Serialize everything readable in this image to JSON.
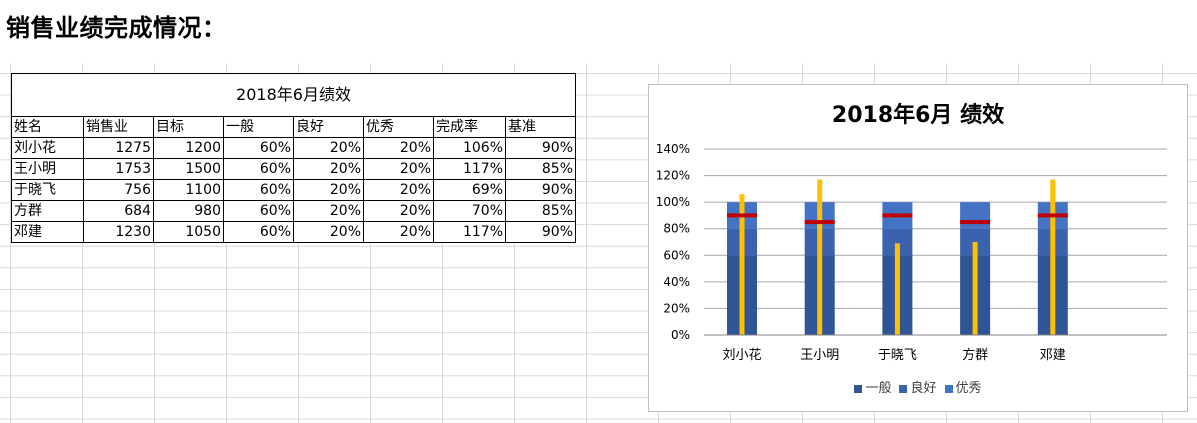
{
  "heading": "销售业绩完成情况：",
  "table": {
    "title": "2018年6月绩效",
    "headers": [
      "姓名",
      "销售业",
      "目标",
      "一般",
      "良好",
      "优秀",
      "完成率",
      "基准"
    ],
    "rows": [
      [
        "刘小花",
        "1275",
        "1200",
        "60%",
        "20%",
        "20%",
        "106%",
        "90%"
      ],
      [
        "王小明",
        "1753",
        "1500",
        "60%",
        "20%",
        "20%",
        "117%",
        "85%"
      ],
      [
        "于晓飞",
        "756",
        "1100",
        "60%",
        "20%",
        "20%",
        "69%",
        "90%"
      ],
      [
        "方群",
        "684",
        "980",
        "60%",
        "20%",
        "20%",
        "70%",
        "85%"
      ],
      [
        "邓建",
        "1230",
        "1050",
        "60%",
        "20%",
        "20%",
        "117%",
        "90%"
      ]
    ]
  },
  "chart_data": {
    "type": "bar",
    "title": "2018年6月 绩效",
    "categories": [
      "刘小花",
      "王小明",
      "于晓飞",
      "方群",
      "邓建"
    ],
    "series": [
      {
        "name": "一般",
        "type": "stacked-bar",
        "values": [
          0.6,
          0.6,
          0.6,
          0.6,
          0.6
        ],
        "color": "#2f5597"
      },
      {
        "name": "良好",
        "type": "stacked-bar",
        "values": [
          0.2,
          0.2,
          0.2,
          0.2,
          0.2
        ],
        "color": "#3a62ae"
      },
      {
        "name": "优秀",
        "type": "stacked-bar",
        "values": [
          0.2,
          0.2,
          0.2,
          0.2,
          0.2
        ],
        "color": "#4472c4"
      },
      {
        "name": "完成率",
        "type": "thin-bar",
        "values": [
          1.06,
          1.17,
          0.69,
          0.7,
          1.17
        ],
        "color": "#ffc000"
      },
      {
        "name": "基准",
        "type": "marker",
        "values": [
          0.9,
          0.85,
          0.9,
          0.85,
          0.9
        ],
        "color": "#c00000"
      }
    ],
    "ylim": [
      0,
      1.4
    ],
    "yticks": [
      "0%",
      "20%",
      "40%",
      "60%",
      "80%",
      "100%",
      "120%",
      "140%"
    ],
    "legend": [
      "一般",
      "良好",
      "优秀"
    ],
    "legend_position": "bottom"
  }
}
